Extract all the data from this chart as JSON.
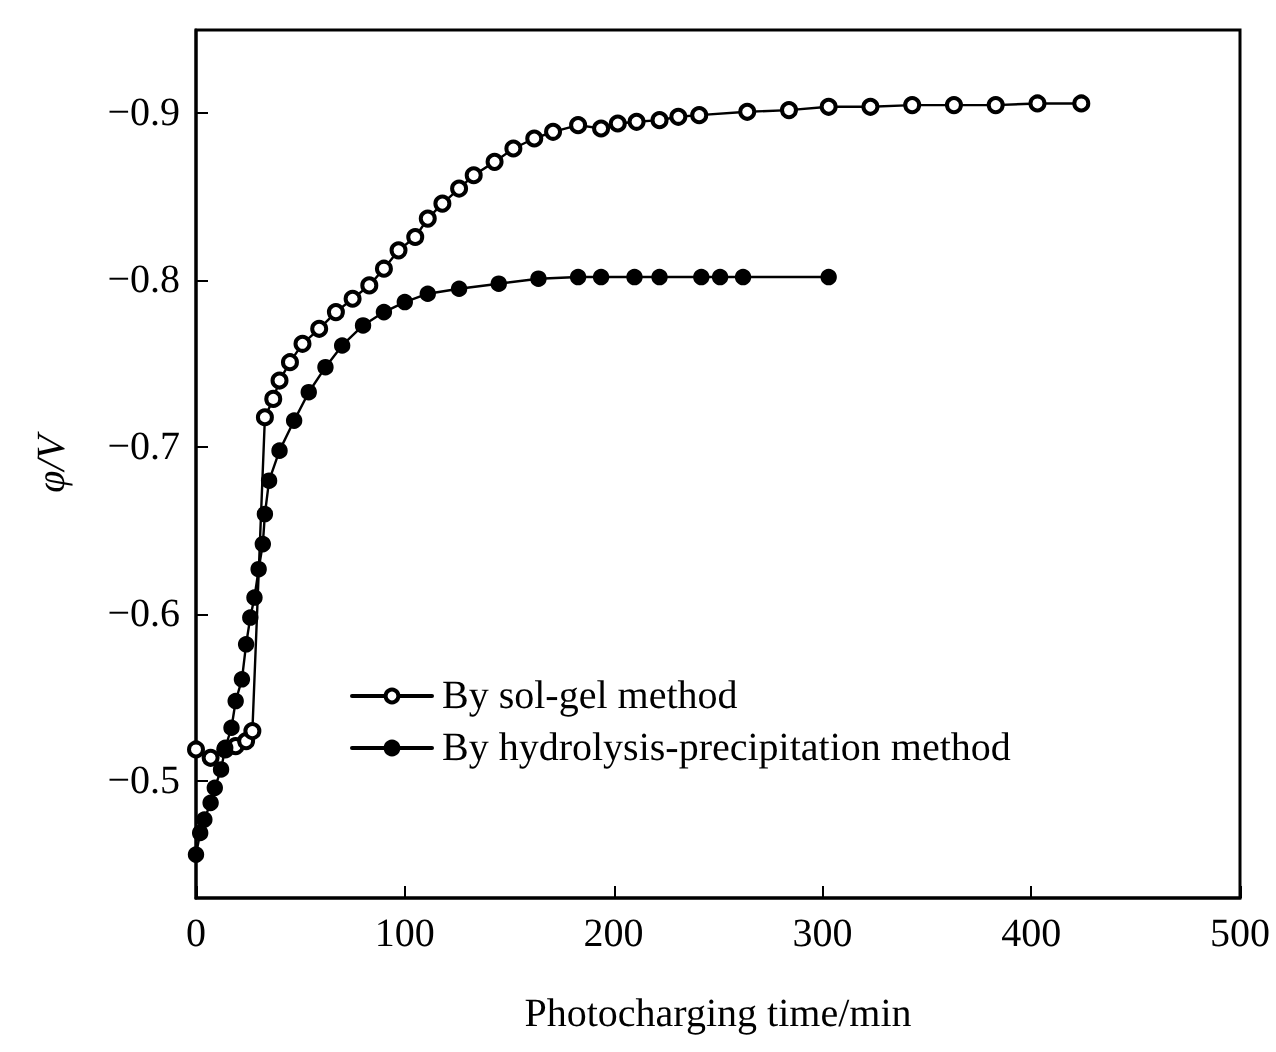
{
  "chart_data": {
    "type": "line",
    "xlabel": "Photocharging time/min",
    "ylabel": "φ/V",
    "xlim": [
      0,
      500
    ],
    "xticks": [
      0,
      100,
      200,
      300,
      400,
      500
    ],
    "ylim": [
      -0.43,
      -0.95
    ],
    "yticks": [
      -0.5,
      -0.6,
      -0.7,
      -0.8,
      -0.9
    ],
    "grid": false,
    "legend": "bottom left",
    "marker": "circle",
    "line_style": "solid",
    "series": [
      {
        "name": "By sol-gel method",
        "color": "#000000",
        "x": [
          0,
          7,
          14,
          19,
          24,
          27,
          33,
          37,
          40,
          45,
          51,
          59,
          67,
          75,
          83,
          90,
          97,
          105,
          111,
          118,
          126,
          133,
          143,
          152,
          162,
          171,
          183,
          194,
          202,
          211,
          222,
          231,
          241,
          264,
          284,
          303,
          323,
          343,
          363,
          383,
          403,
          424
        ],
        "values": [
          -0.519,
          -0.514,
          -0.519,
          -0.521,
          -0.524,
          -0.53,
          -0.718,
          -0.729,
          -0.74,
          -0.751,
          -0.762,
          -0.771,
          -0.781,
          -0.789,
          -0.797,
          -0.807,
          -0.818,
          -0.826,
          -0.837,
          -0.846,
          -0.855,
          -0.863,
          -0.871,
          -0.879,
          -0.885,
          -0.889,
          -0.893,
          -0.891,
          -0.894,
          -0.895,
          -0.896,
          -0.898,
          -0.899,
          -0.901,
          -0.902,
          -0.904,
          -0.904,
          -0.905,
          -0.905,
          -0.905,
          -0.906,
          -0.906
        ]
      },
      {
        "name": "By hydrolysis-precipitation method",
        "color": "#000000",
        "x": [
          0,
          2,
          4,
          7,
          9,
          12,
          14,
          17,
          19,
          22,
          24,
          26,
          28,
          30,
          32,
          33,
          35,
          40,
          47,
          54,
          62,
          70,
          80,
          90,
          100,
          111,
          126,
          145,
          164,
          183,
          194,
          210,
          222,
          242,
          251,
          262,
          303
        ],
        "values": [
          -0.456,
          -0.469,
          -0.477,
          -0.487,
          -0.496,
          -0.507,
          -0.52,
          -0.532,
          -0.548,
          -0.561,
          -0.582,
          -0.598,
          -0.61,
          -0.627,
          -0.642,
          -0.66,
          -0.68,
          -0.698,
          -0.716,
          -0.733,
          -0.748,
          -0.761,
          -0.773,
          -0.781,
          -0.787,
          -0.792,
          -0.795,
          -0.798,
          -0.801,
          -0.802,
          -0.802,
          -0.802,
          -0.802,
          -0.802,
          -0.802,
          -0.802,
          -0.802
        ]
      }
    ]
  }
}
